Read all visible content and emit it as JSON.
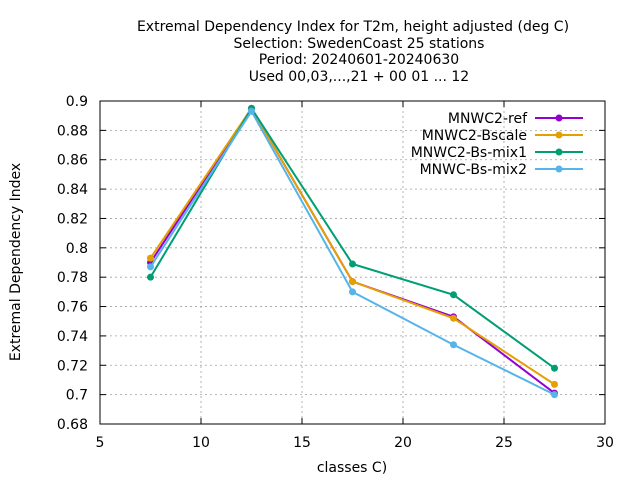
{
  "chart_data": {
    "type": "line",
    "title_lines": [
      "Extremal Dependency Index  for T2m, height adjusted (deg C)",
      "Selection: SwedenCoast     25 stations",
      "Period: 20240601-20240630",
      "Used 00,03,...,21 + 00 01 ... 12"
    ],
    "xlabel": "classes C)",
    "ylabel": "Extremal Dependency Index",
    "xlim": [
      5,
      30
    ],
    "ylim": [
      0.68,
      0.9
    ],
    "x_ticks": [
      "5",
      "10",
      "15",
      "20",
      "25",
      "30"
    ],
    "y_ticks": [
      "0.68",
      "0.7",
      "0.72",
      "0.74",
      "0.76",
      "0.78",
      "0.8",
      "0.82",
      "0.84",
      "0.86",
      "0.88",
      "0.9"
    ],
    "grid": true,
    "legend_position": "top-right",
    "x": [
      7.5,
      12.5,
      17.5,
      22.5,
      27.5
    ],
    "series": [
      {
        "name": "MNWC2-ref",
        "color": "#9400d3",
        "values": [
          0.79,
          0.895,
          0.777,
          0.753,
          0.701
        ]
      },
      {
        "name": "MNWC2-Bscale",
        "color": "#e69f00",
        "values": [
          0.793,
          0.895,
          0.777,
          0.752,
          0.707
        ]
      },
      {
        "name": "MNWC2-Bs-mix1",
        "color": "#009e73",
        "values": [
          0.78,
          0.895,
          0.789,
          0.768,
          0.718
        ]
      },
      {
        "name": "MNWC-Bs-mix2",
        "color": "#56b4e9",
        "values": [
          0.787,
          0.893,
          0.77,
          0.734,
          0.7
        ]
      }
    ]
  }
}
